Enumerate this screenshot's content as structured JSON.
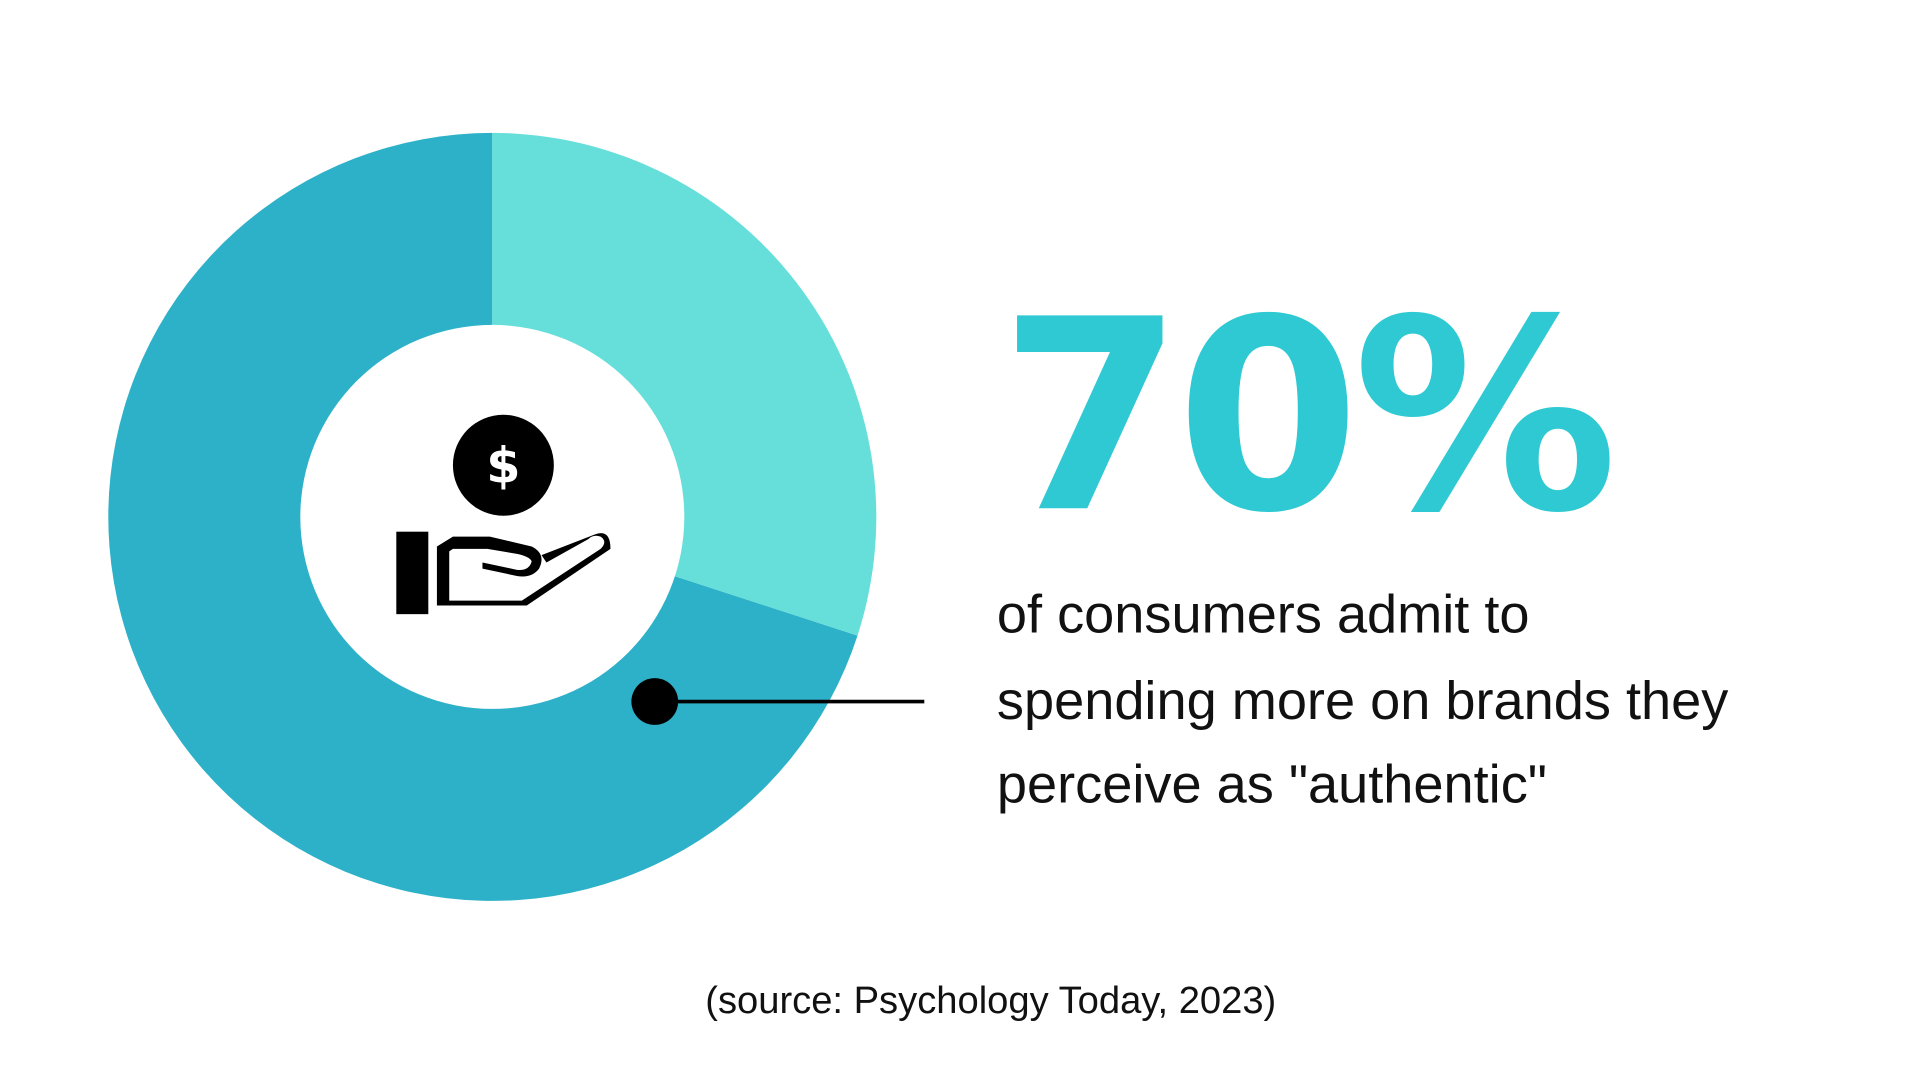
{
  "chart_data": {
    "type": "donut",
    "values": [
      70,
      30
    ],
    "value_labels": [
      "70%",
      null
    ],
    "colors": [
      "#2db1c8",
      "#66dfda"
    ],
    "label_color": "#2ec9d2",
    "description": [
      "of consumers admit to",
      "spending more on brands they",
      "perceive as \"authentic\""
    ],
    "source": "(source: Psychology Today, 2023)"
  }
}
